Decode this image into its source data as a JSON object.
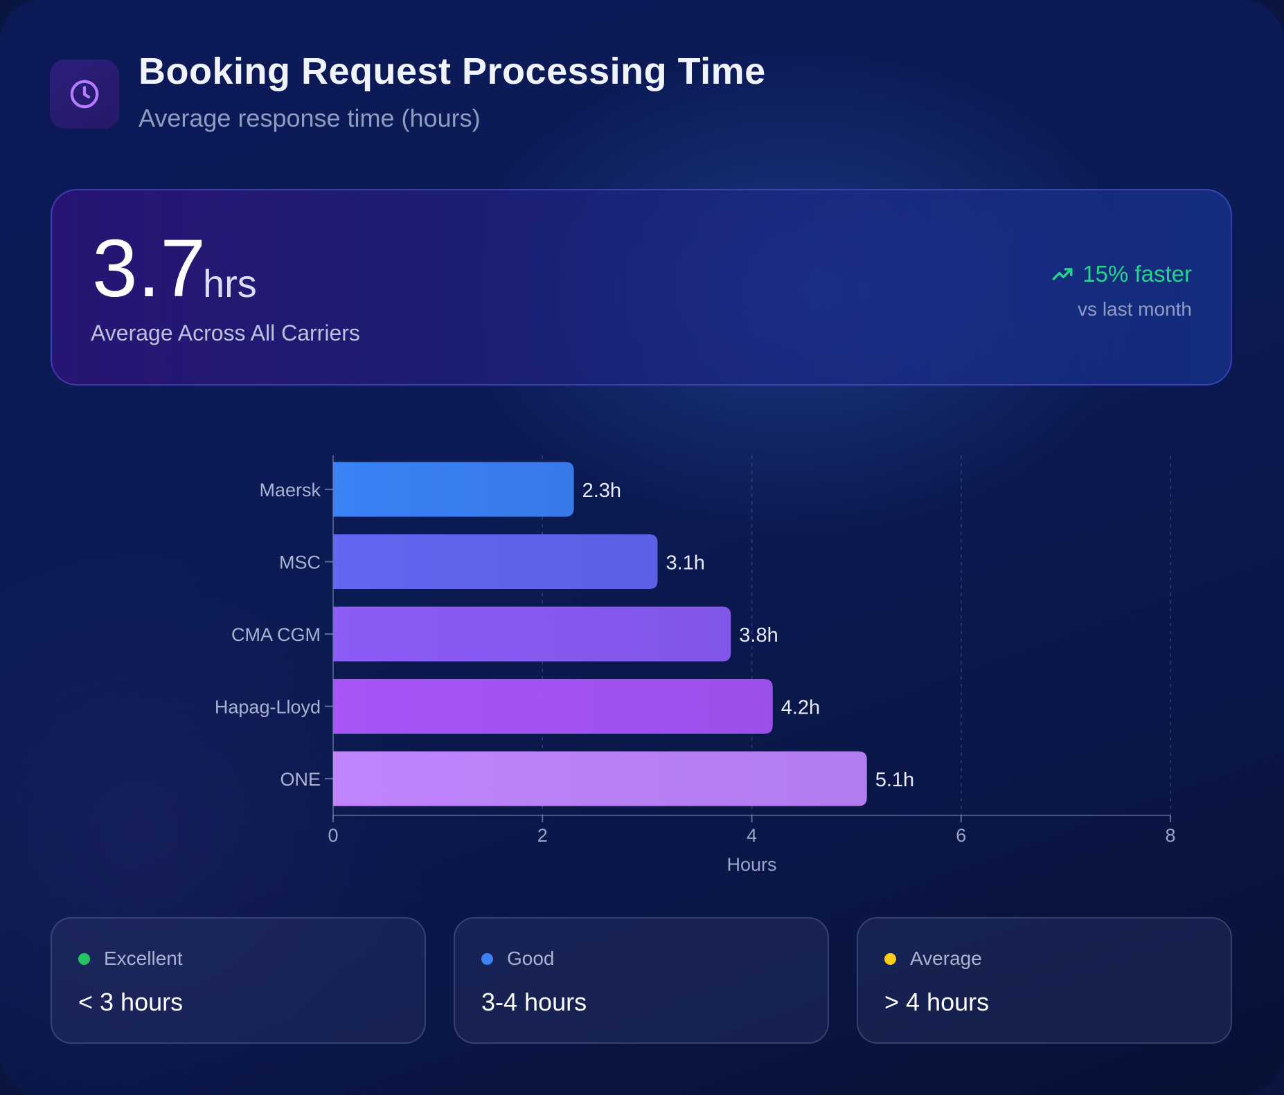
{
  "header": {
    "title": "Booking Request Processing Time",
    "subtitle": "Average response time (hours)",
    "icon": "clock-icon"
  },
  "summary": {
    "value": "3.7",
    "unit": "hrs",
    "label": "Average Across All Carriers",
    "trend_text": "15% faster",
    "trend_sub": "vs last month",
    "trend_icon": "trending-up-icon",
    "trend_color": "#22d68a"
  },
  "chart_data": {
    "type": "bar",
    "orientation": "horizontal",
    "categories": [
      "Maersk",
      "MSC",
      "CMA CGM",
      "Hapag-Lloyd",
      "ONE"
    ],
    "values": [
      2.3,
      3.1,
      3.8,
      4.2,
      5.1
    ],
    "data_labels": [
      "2.3h",
      "3.1h",
      "3.8h",
      "4.2h",
      "5.1h"
    ],
    "colors": [
      "#3b82f6",
      "#6366f1",
      "#8b5cf6",
      "#a855f7",
      "#c084fc"
    ],
    "xlabel": "Hours",
    "ylabel": "",
    "xlim": [
      0,
      8
    ],
    "xticks": [
      0,
      2,
      4,
      6,
      8
    ],
    "grid": true
  },
  "legend": [
    {
      "label": "Excellent",
      "value": "< 3 hours",
      "color": "#22c55e"
    },
    {
      "label": "Good",
      "value": "3-4 hours",
      "color": "#3b82f6"
    },
    {
      "label": "Average",
      "value": "> 4 hours",
      "color": "#facc15"
    }
  ]
}
